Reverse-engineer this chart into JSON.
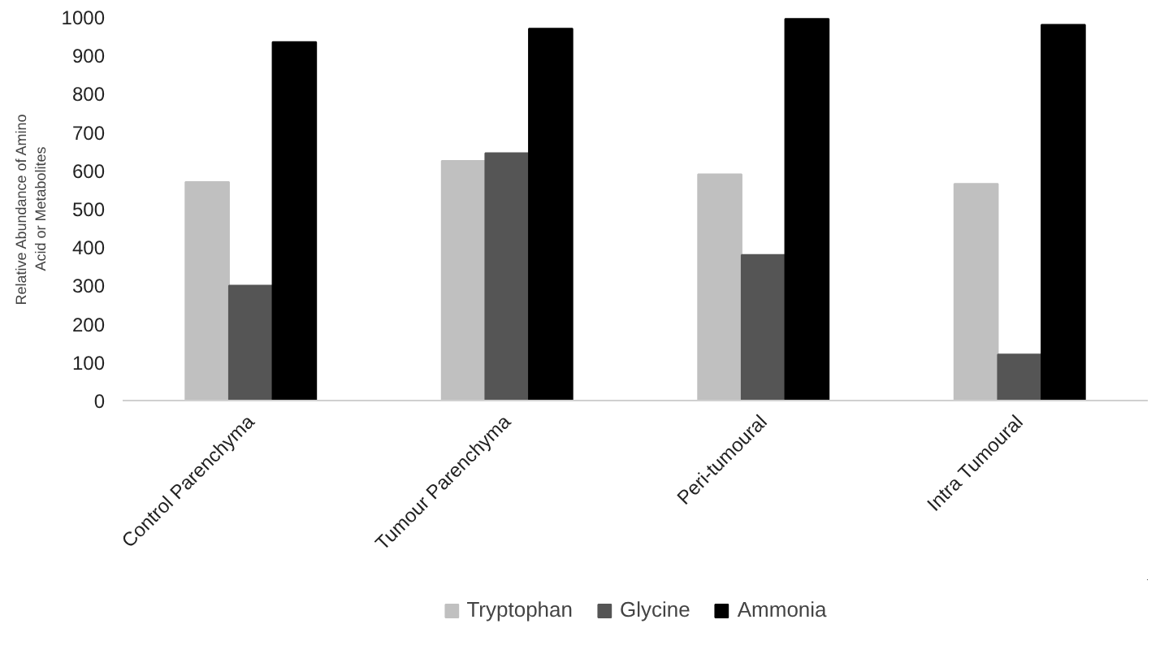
{
  "chart_data": {
    "type": "bar",
    "ylabel": "Relative Abundance of Amino\nAcid or Metabolites",
    "categories": [
      "Control Parenchyma",
      "Tumour Parenchyma",
      "Peri-tumoural",
      "Intra Tumoural"
    ],
    "series": [
      {
        "name": "Tryptophan",
        "color": "#c0c0c0",
        "values": [
          570,
          625,
          590,
          565
        ]
      },
      {
        "name": "Glycine",
        "color": "#555555",
        "values": [
          300,
          645,
          380,
          120
        ]
      },
      {
        "name": "Ammonia",
        "color": "#000000",
        "values": [
          935,
          970,
          995,
          980
        ]
      }
    ],
    "ylim": [
      0,
      1000
    ],
    "yticks": [
      0,
      100,
      200,
      300,
      400,
      500,
      600,
      700,
      800,
      900,
      1000
    ],
    "grid": false,
    "legend": "bottom"
  }
}
